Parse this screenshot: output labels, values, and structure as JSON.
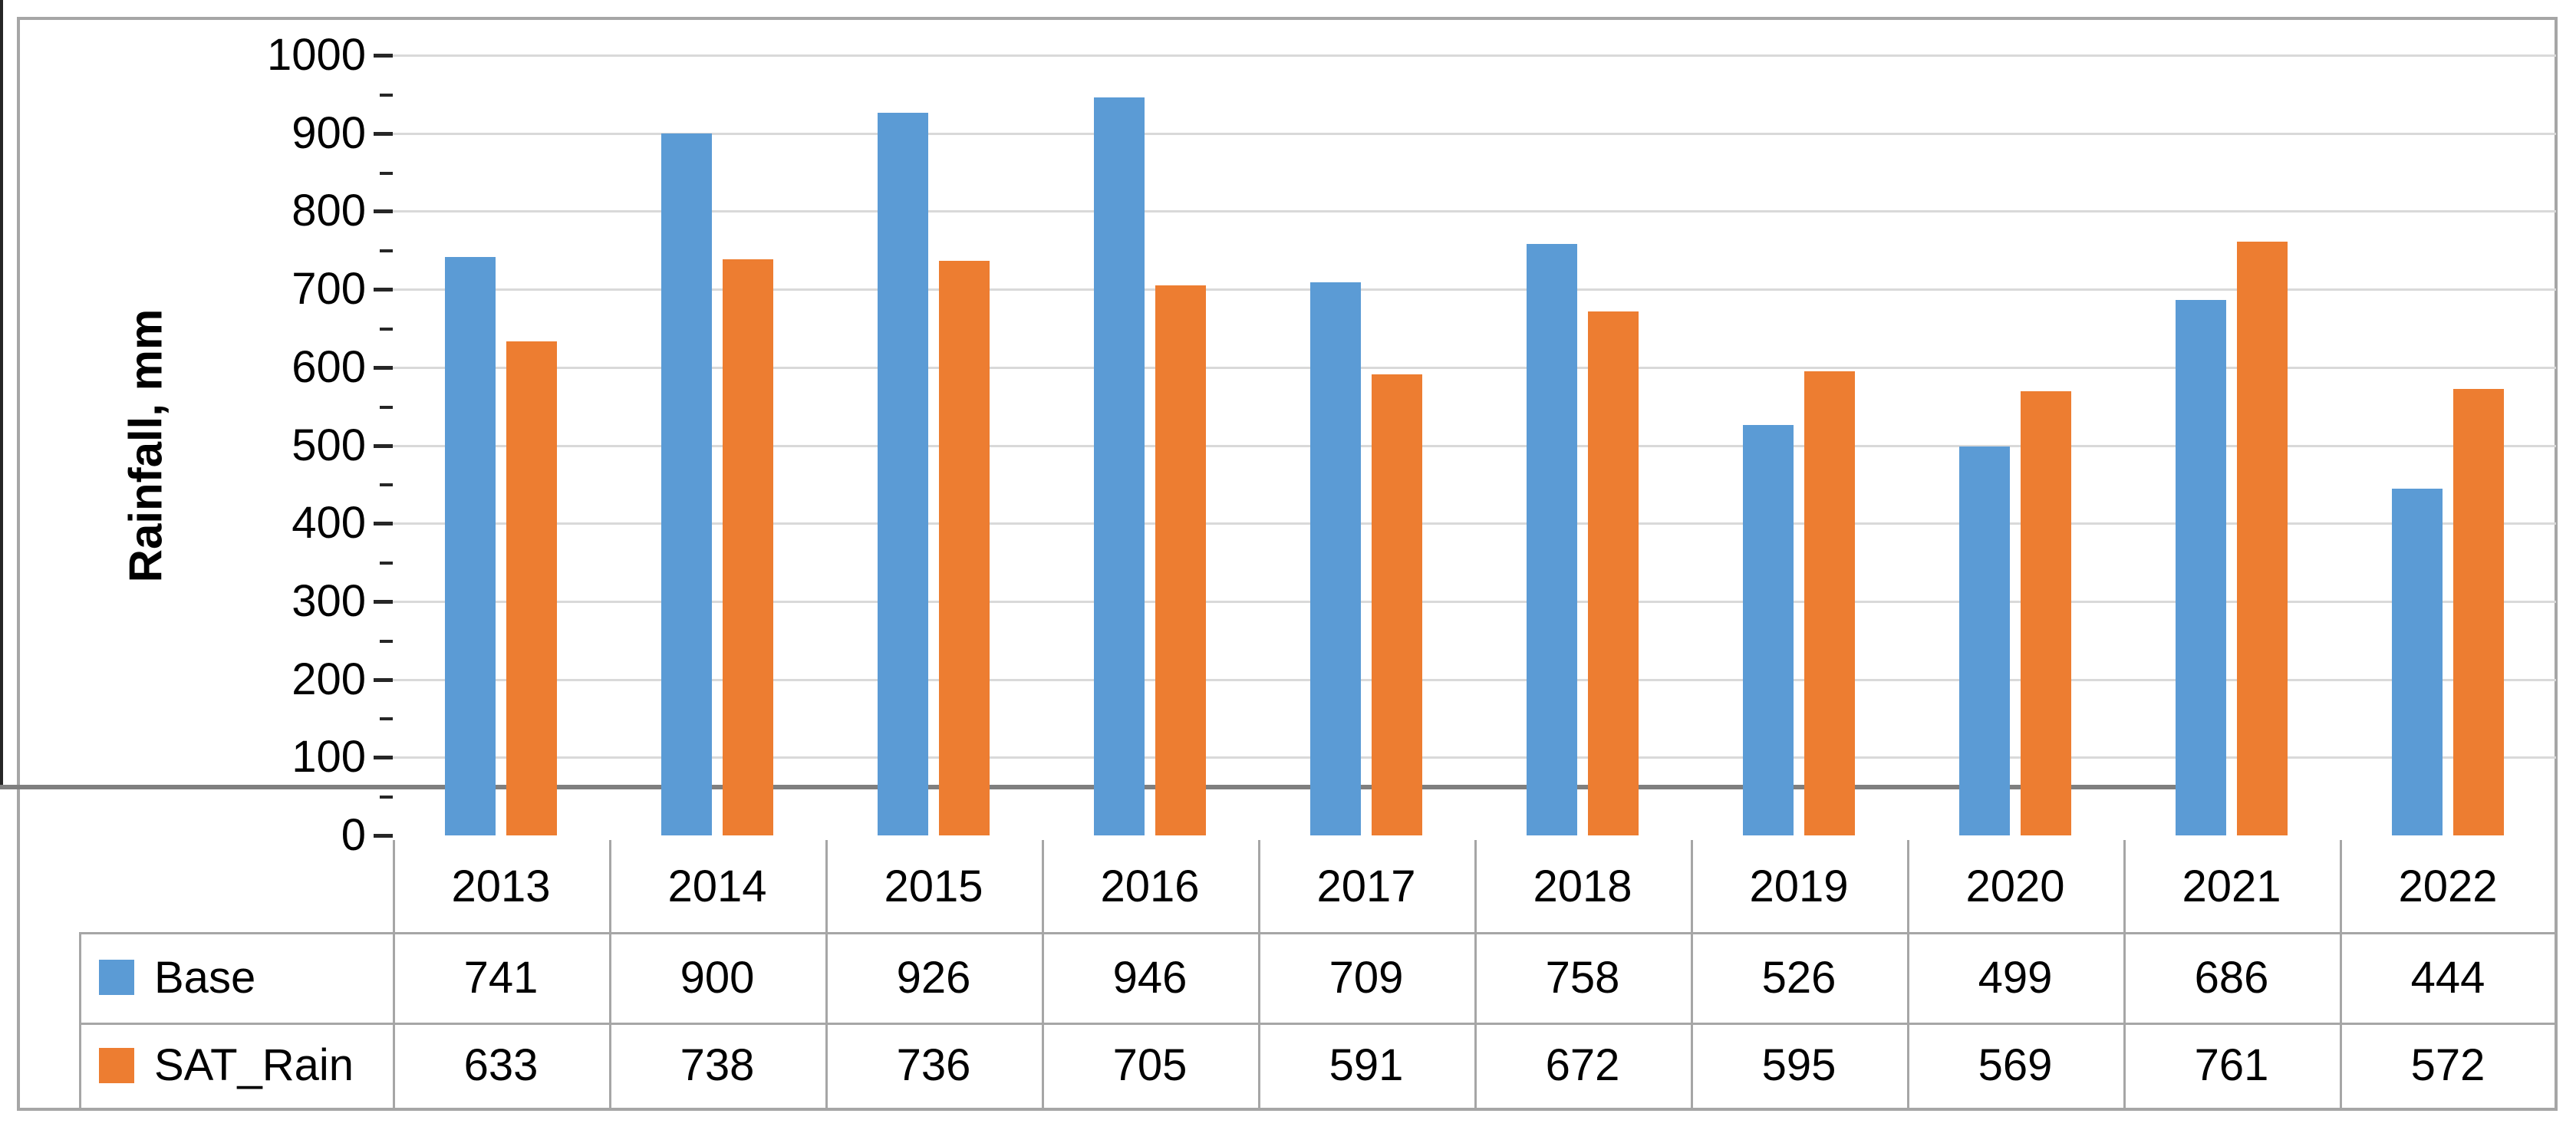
{
  "chart_data": {
    "type": "bar",
    "title": "",
    "xlabel": "",
    "ylabel": "Rainfall, mm",
    "categories": [
      "2013",
      "2014",
      "2015",
      "2016",
      "2017",
      "2018",
      "2019",
      "2020",
      "2021",
      "2022"
    ],
    "series": [
      {
        "name": "Base",
        "color": "#5B9BD5",
        "values": [
          741,
          900,
          926,
          946,
          709,
          758,
          526,
          499,
          686,
          444
        ]
      },
      {
        "name": "SAT_Rain",
        "color": "#ED7D31",
        "values": [
          633,
          738,
          736,
          705,
          591,
          672,
          595,
          569,
          761,
          572
        ]
      }
    ],
    "ylim": [
      0,
      1000
    ],
    "y_ticks": [
      0,
      100,
      200,
      300,
      400,
      500,
      600,
      700,
      800,
      900,
      1000
    ],
    "y_minor_tick_step": 50,
    "grid": "horizontal-major",
    "legend_position": "data-table-left",
    "data_table_shown": true,
    "colors": {
      "bar_blue": "#5B9BD5",
      "bar_orange": "#ED7D31",
      "gridline": "#D9D9D9",
      "y_axis_line": "#262626",
      "x_axis_line": "#7F7F7F",
      "table_border": "#A6A6A6",
      "figure_border": "#A6A6A6",
      "text": "#000000",
      "background": "#FFFFFF"
    }
  }
}
